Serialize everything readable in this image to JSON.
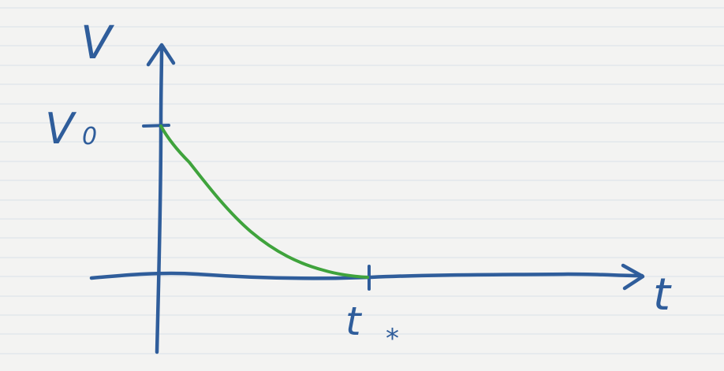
{
  "colors": {
    "paper": "#f3f3f2",
    "ruled_line": "#dde4ea",
    "axis_ink": "#2f5d9b",
    "curve_ink": "#3fa33c"
  },
  "labels": {
    "y_axis": "V",
    "x_axis": "t",
    "y_tick": "V",
    "y_tick_sub": "0",
    "x_tick": "t",
    "x_tick_sub": "*"
  }
}
